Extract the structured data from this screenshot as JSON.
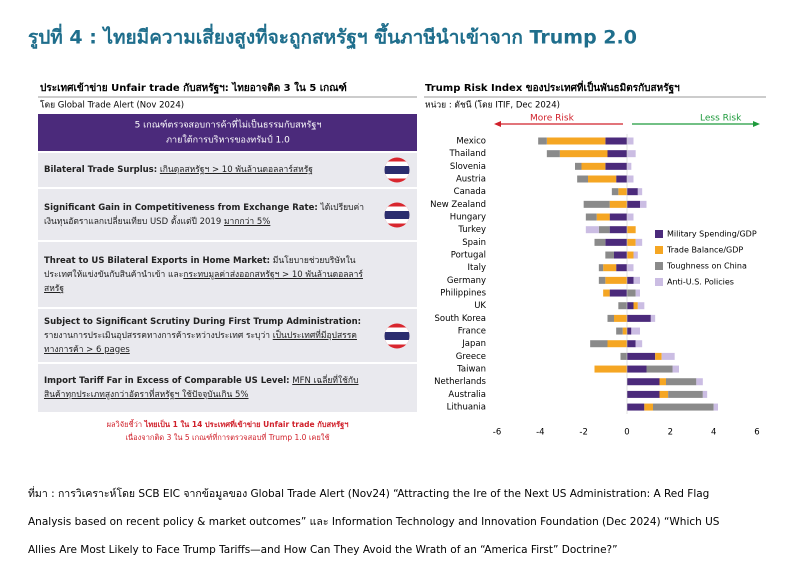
{
  "title": "รูปที่ 4 : ไทยมีความเสี่ยงสูงที่จะถูกสหรัฐฯ ขึ้นภาษีนำเข้าจาก Trump 2.0",
  "left_panel": {
    "title": "ประเทศเข้าข่าย Unfair trade กับสหรัฐฯ: ไทยอาจติด 3 ใน 5 เกณฑ์",
    "subtitle": "โดย Global Trade Alert (Nov 2024)",
    "box": [
      "5 เกณฑ์ตรวจสอบการค้าที่ไม่เป็นธรรมกับสหรัฐฯ",
      "ภายใต้การบริหารของทรัมป์ 1.0"
    ],
    "rows": [
      {
        "label": "Bilateral Trade Surplus:",
        "parts": [
          {
            "text": "เกินดุลสหรัฐฯ > 10 พันล้านดอลลาร์สหรัฐ",
            "underline": true
          }
        ],
        "flag": true
      },
      {
        "label": "Significant Gain in Competitiveness from Exchange Rate:",
        "parts": [
          {
            "text": "ได้เปรียบค่าเงินทุนอัตราแลกเปลี่ยนเทียบ USD ตั้งแต่ปี 2019 "
          },
          {
            "text": "มากกว่า 5%",
            "underline": true
          }
        ],
        "flag": true
      },
      {
        "label": "Threat to US Bilateral Exports in Home Market:",
        "parts": [
          {
            "text": "มีนโยบายช่วยบริษัทในประเทศให้แข่งขันกับสินค้านำเข้า และ"
          },
          {
            "text": "กระทบมูลค่าส่งออกสหรัฐฯ > 10 พันล้านดอลลาร์สหรัฐ",
            "underline": true
          }
        ],
        "flag": false
      },
      {
        "label": "Subject to Significant Scrutiny During First Trump Administration:",
        "parts": [
          {
            "text": "รายงานการประเมินอุปสรรคทางการค้าระหว่างประเทศ ระบุว่า "
          },
          {
            "text": "เป็นประเทศที่มีอุปสรรคทางการค้า > 6 pages",
            "underline": true
          }
        ],
        "flag": true
      },
      {
        "label": "Import Tariff Far in Excess of Comparable US Level:",
        "parts": [
          {
            "text": "MFN เฉลี่ยที่ใช้กับสินค้าทุกประเภทสูงกว่าอัตราที่สหรัฐฯ ใช้ปัจจุบันเกิน 5%",
            "underline": true
          }
        ],
        "flag": false
      }
    ],
    "footer": [
      "ผลวิจัยชี้ว่า ",
      "ไทยเป็น 1 ใน 14 ประเทศที่เข้าข่าย Unfair trade กับสหรัฐฯ",
      "เนื่องจากติด 3 ใน 5 เกณฑ์ที่การตรวจสอบที่ Trump 1.0 เคยใช้"
    ]
  },
  "chart_data": {
    "type": "diverging_stacked_bar",
    "title": "Trump Risk Index ของประเทศที่เป็นพันธมิตรกับสหรัฐฯ",
    "subtitle": "หน่วย : ดัชนี (โดย ITIF, Dec 2024)",
    "annotations": [
      "More Risk",
      "Less Risk"
    ],
    "categories": [
      "Mexico",
      "Thailand",
      "Slovenia",
      "Austria",
      "Canada",
      "New Zealand",
      "Hungary",
      "Turkey",
      "Spain",
      "Portugal",
      "Italy",
      "Germany",
      "Philippines",
      "UK",
      "South Korea",
      "France",
      "Japan",
      "Greece",
      "Taiwan",
      "Netherlands",
      "Australia",
      "Lithuania"
    ],
    "series": [
      {
        "name": "Military Spending/GDP",
        "color": "#4b2a7b",
        "values": [
          -1.0,
          -0.9,
          -1.0,
          -0.5,
          0.5,
          0.6,
          -0.8,
          -0.8,
          -1.0,
          -0.6,
          -0.5,
          0.3,
          -0.8,
          0.3,
          1.1,
          0.2,
          0.4,
          1.3,
          0.9,
          1.5,
          1.5,
          0.8
        ]
      },
      {
        "name": "Trade Balance/GDP",
        "color": "#f5a623",
        "values": [
          -2.7,
          -2.2,
          -1.1,
          -1.3,
          -0.4,
          -0.8,
          -0.6,
          0.4,
          0.4,
          0.3,
          -0.6,
          -1.0,
          -0.3,
          0.2,
          -0.6,
          -0.2,
          -0.9,
          0.3,
          -1.5,
          0.3,
          0.4,
          0.4
        ]
      },
      {
        "name": "Toughness on China",
        "color": "#8a8a8a",
        "values": [
          -0.4,
          -0.6,
          -0.3,
          -0.5,
          -0.3,
          -1.2,
          -0.5,
          -0.5,
          -0.5,
          -0.4,
          -0.2,
          -0.3,
          0.4,
          -0.4,
          -0.3,
          -0.3,
          -0.8,
          -0.3,
          1.2,
          1.4,
          1.6,
          2.8
        ]
      },
      {
        "name": "Anti-U.S. Policies",
        "color": "#cbbde3",
        "values": [
          0.3,
          0.4,
          0.2,
          0.3,
          0.2,
          0.3,
          0.3,
          -0.6,
          0.3,
          0.2,
          0.3,
          0.3,
          0.2,
          0.3,
          0.2,
          0.4,
          0.3,
          0.6,
          0.3,
          0.3,
          0.2,
          0.2
        ]
      }
    ],
    "xlim": [
      -6,
      6
    ],
    "xticks": [
      -6,
      -4,
      -2,
      0,
      2,
      4,
      6
    ],
    "grid": false,
    "legend": "right"
  },
  "source": [
    "ที่มา : การวิเคราะห์โดย SCB EIC จากข้อมูลของ Global Trade Alert (Nov24) “Attracting the Ire of the Next US Administration: A Red Flag",
    "Analysis based on recent policy & market outcomes” และ Information Technology and Innovation Foundation (Dec 2024) “Which US",
    "Allies Are Most Likely to Face Trump Tariffs—and How Can They Avoid the Wrath of an “America First” Doctrine?”"
  ]
}
